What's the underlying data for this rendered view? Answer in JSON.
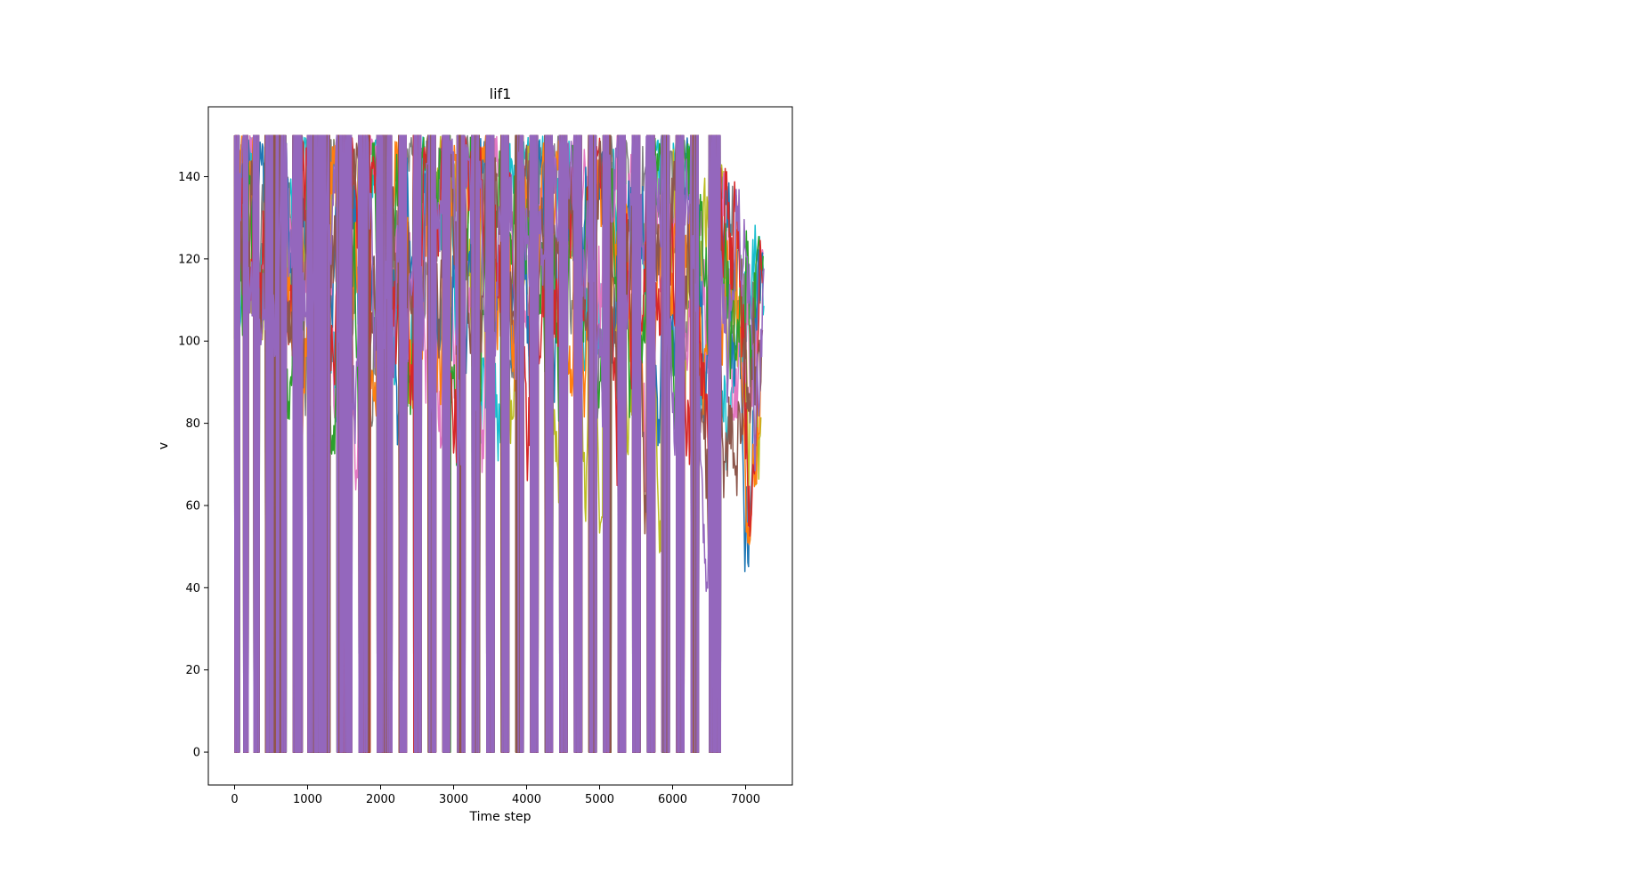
{
  "chart_data": {
    "type": "line",
    "title": "lif1",
    "xlabel": "Time step",
    "ylabel": "v",
    "xlim": [
      -360,
      7640
    ],
    "ylim": [
      -8,
      157
    ],
    "xticks": [
      0,
      1000,
      2000,
      3000,
      4000,
      5000,
      6000,
      7000
    ],
    "yticks": [
      0,
      20,
      40,
      60,
      80,
      100,
      120,
      140
    ],
    "xtick_labels": [
      "0",
      "1000",
      "2000",
      "3000",
      "4000",
      "5000",
      "6000",
      "7000"
    ],
    "ytick_labels": [
      "0",
      "20",
      "40",
      "60",
      "80",
      "100",
      "120",
      "140"
    ],
    "grid": false,
    "legend": "none",
    "n_series_visible": 10,
    "series_colors": [
      "#1f77b4",
      "#ff7f0e",
      "#2ca02c",
      "#d62728",
      "#9467bd",
      "#8c564b",
      "#e377c2",
      "#7f7f7f",
      "#bcbd22",
      "#17becf"
    ],
    "spike_threshold": 150,
    "reset_value": 0,
    "pulse_bands": [
      [
        0,
        60
      ],
      [
        120,
        180
      ],
      [
        260,
        330
      ],
      [
        420,
        520
      ],
      [
        540,
        620
      ],
      [
        640,
        700
      ],
      [
        800,
        920
      ],
      [
        1000,
        1300
      ],
      [
        1400,
        1600
      ],
      [
        1700,
        1850
      ],
      [
        1950,
        2150
      ],
      [
        2250,
        2350
      ],
      [
        2450,
        2550
      ],
      [
        2650,
        2750
      ],
      [
        2850,
        2950
      ],
      [
        3050,
        3150
      ],
      [
        3250,
        3350
      ],
      [
        3450,
        3550
      ],
      [
        3650,
        3750
      ],
      [
        3850,
        3950
      ],
      [
        4050,
        4150
      ],
      [
        4250,
        4350
      ],
      [
        4450,
        4550
      ],
      [
        4650,
        4750
      ],
      [
        4850,
        4950
      ],
      [
        5050,
        5150
      ],
      [
        5250,
        5350
      ],
      [
        5450,
        5550
      ],
      [
        5650,
        5750
      ],
      [
        5850,
        5950
      ],
      [
        6050,
        6150
      ],
      [
        6250,
        6350
      ],
      [
        6500,
        6650
      ]
    ],
    "envelope": {
      "x": [
        0,
        500,
        1000,
        1500,
        2000,
        2500,
        3000,
        3500,
        4000,
        4500,
        5000,
        5500,
        6000,
        6300,
        6500,
        6700,
        6800,
        6900,
        7000,
        7100,
        7200,
        7280
      ],
      "upper": [
        150,
        150,
        150,
        150,
        150,
        150,
        150,
        150,
        150,
        150,
        150,
        150,
        150,
        150,
        145,
        143,
        140,
        138,
        128,
        130,
        126,
        118
      ],
      "lower": [
        100,
        98,
        55,
        40,
        50,
        52,
        68,
        56,
        58,
        57,
        51,
        47,
        45,
        50,
        31,
        55,
        67,
        60,
        33,
        62,
        63,
        65
      ]
    }
  }
}
